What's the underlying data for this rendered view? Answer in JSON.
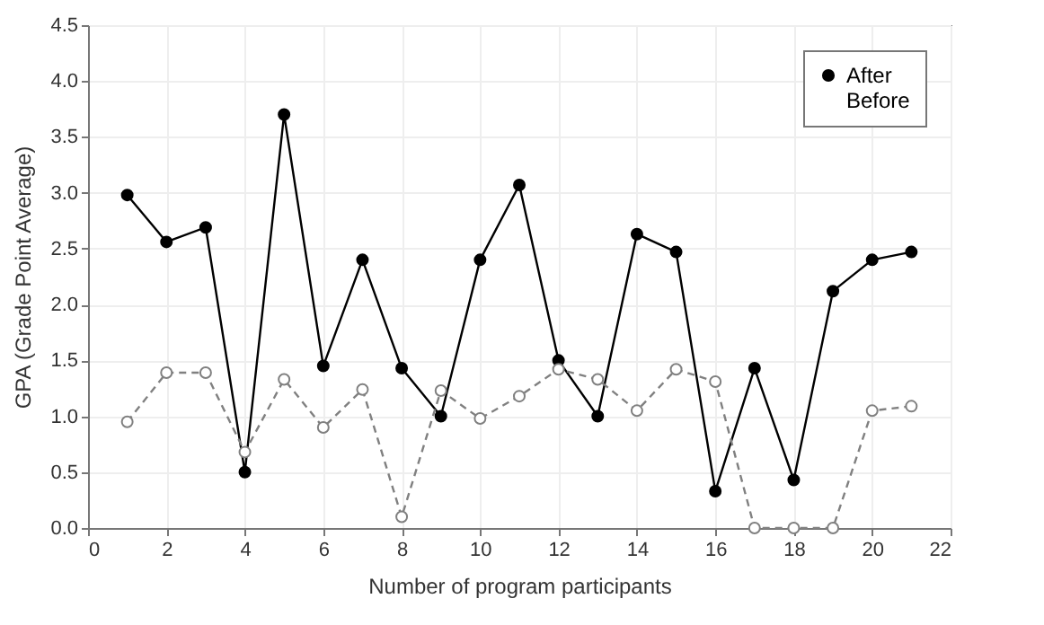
{
  "chart_data": {
    "type": "line",
    "xlabel": "Number of program participants",
    "ylabel": "GPA (Grade Point Average)",
    "x": [
      1,
      2,
      3,
      4,
      5,
      6,
      7,
      8,
      9,
      10,
      11,
      12,
      13,
      14,
      15,
      16,
      17,
      18,
      19,
      20,
      21
    ],
    "series": [
      {
        "name": "After",
        "color": "#000000",
        "marker": "circle",
        "line_style": "solid",
        "values": [
          2.98,
          2.56,
          2.69,
          0.5,
          3.7,
          1.45,
          2.4,
          1.43,
          1.0,
          2.4,
          3.07,
          1.5,
          1.0,
          2.63,
          2.47,
          0.33,
          1.43,
          0.43,
          2.12,
          2.4,
          2.47
        ]
      },
      {
        "name": "Before",
        "color": "#808080",
        "marker": "circle",
        "line_style": "dashed",
        "values": [
          0.95,
          1.39,
          1.39,
          0.68,
          1.33,
          0.9,
          1.24,
          0.1,
          1.23,
          0.98,
          1.18,
          1.42,
          1.33,
          1.05,
          1.42,
          1.31,
          0,
          0,
          0,
          1.05,
          1.09
        ]
      }
    ],
    "xlim": [
      0,
      22
    ],
    "xticks": [
      0,
      2,
      4,
      6,
      8,
      10,
      12,
      14,
      16,
      18,
      20,
      22
    ],
    "ylim": [
      0,
      4.5
    ],
    "yticks": [
      {
        "value": 0,
        "label": "0.0"
      },
      {
        "value": 0.5,
        "label": "0.5"
      },
      {
        "value": 1,
        "label": "1.0"
      },
      {
        "value": 1.5,
        "label": "1.5"
      },
      {
        "value": 2,
        "label": "2.0"
      },
      {
        "value": 2.5,
        "label": "2.5"
      },
      {
        "value": 3,
        "label": "3.0"
      },
      {
        "value": 3.5,
        "label": "3.5"
      },
      {
        "value": 4,
        "label": "4.0"
      },
      {
        "value": 4.5,
        "label": "4.5"
      }
    ],
    "grid": true,
    "legend": "top right"
  }
}
